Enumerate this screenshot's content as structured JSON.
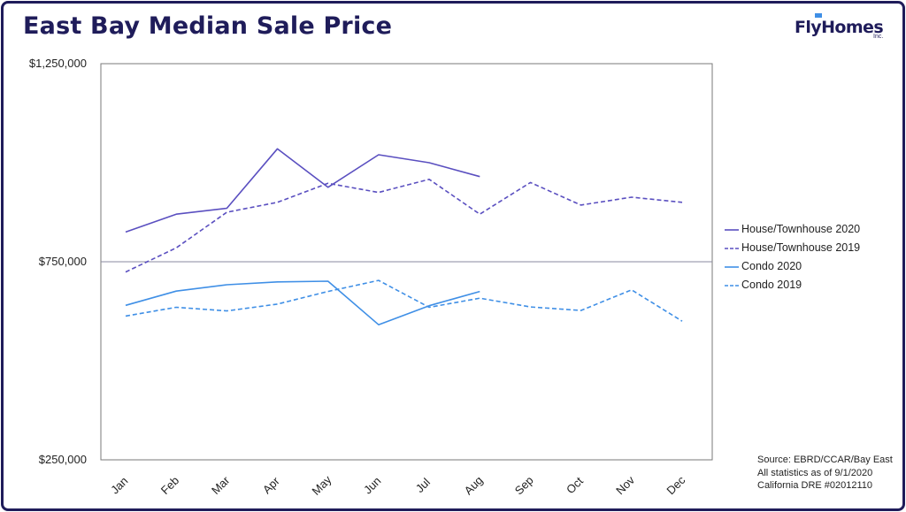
{
  "header": {
    "title": "East Bay Median Sale Price",
    "logo_text": "FlyHomes",
    "logo_sub": "Inc."
  },
  "source_lines": [
    "Source: EBRD/CCAR/Bay East",
    "All statistics as of 9/1/2020",
    "California DRE #02012110"
  ],
  "chart_data": {
    "type": "line",
    "title": "East Bay Median Sale Price",
    "xlabel": "",
    "ylabel": "",
    "categories": [
      "Jan",
      "Feb",
      "Mar",
      "Apr",
      "May",
      "Jun",
      "Jul",
      "Aug",
      "Sep",
      "Oct",
      "Nov",
      "Dec"
    ],
    "ylim": [
      250000,
      1250000
    ],
    "yticks": [
      250000,
      750000,
      1250000
    ],
    "ytick_labels": [
      "$250,000",
      "$750,000",
      "$1,250,000"
    ],
    "reference_line": 750000,
    "grid": false,
    "legend_position": "right",
    "series": [
      {
        "name": "House/Townhouse 2020",
        "style": "solid",
        "color": "#5a4fc0",
        "values": [
          825000,
          870000,
          885000,
          1035000,
          938000,
          1020000,
          1000000,
          965000,
          null,
          null,
          null,
          null
        ]
      },
      {
        "name": "House/Townhouse 2019",
        "style": "dashed",
        "color": "#5a4fc0",
        "values": [
          724000,
          785000,
          875000,
          900000,
          948000,
          925000,
          958000,
          870000,
          950000,
          893000,
          913000,
          900000
        ]
      },
      {
        "name": "Condo 2020",
        "style": "solid",
        "color": "#3f8fe6",
        "values": [
          640000,
          676000,
          692000,
          699000,
          701000,
          591000,
          639000,
          675000,
          null,
          null,
          null,
          null
        ]
      },
      {
        "name": "Condo 2019",
        "style": "dashed",
        "color": "#3f8fe6",
        "values": [
          613000,
          635000,
          626000,
          643000,
          675000,
          703000,
          635000,
          658000,
          636000,
          627000,
          679000,
          600000
        ]
      }
    ]
  }
}
